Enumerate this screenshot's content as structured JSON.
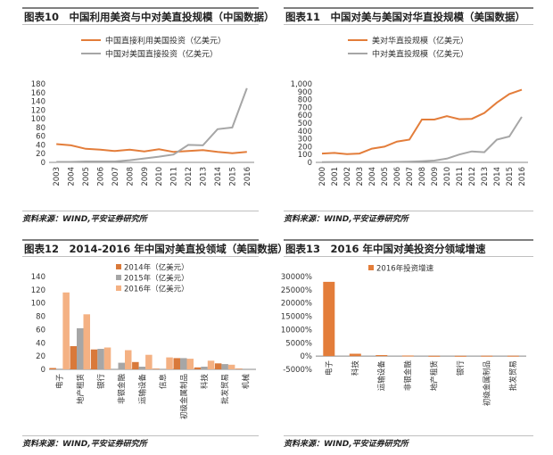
{
  "chart_data": [
    {
      "id": "fig10",
      "type": "line",
      "title": "图表10　中国利用美资与中对美直投规模（中国数据）",
      "categories": [
        "2003",
        "2004",
        "2005",
        "2006",
        "2007",
        "2008",
        "2009",
        "2010",
        "2011",
        "2012",
        "2013",
        "2014",
        "2015",
        "2016"
      ],
      "series": [
        {
          "name": "中国直接利用美国投资（亿美元）",
          "color": "#e37d3a",
          "values": [
            42,
            39,
            31,
            29,
            26,
            29,
            25,
            30,
            24,
            26,
            28,
            24,
            21,
            24
          ]
        },
        {
          "name": "中国对美国直接投资（亿美元）",
          "color": "#a6a6a6",
          "values": [
            1,
            1,
            2,
            2,
            2,
            5,
            9,
            13,
            18,
            40,
            39,
            76,
            80,
            170
          ]
        }
      ],
      "ylim": [
        0,
        180
      ],
      "yticks": [
        0,
        20,
        40,
        60,
        80,
        100,
        120,
        140,
        160,
        180
      ],
      "legend": "top-left",
      "source": "资料来源：WIND,平安证券研究所"
    },
    {
      "id": "fig11",
      "type": "line",
      "title": "图表11　中国对美与美国对华直投规模（美国数据）",
      "categories": [
        "2000",
        "2001",
        "2002",
        "2003",
        "2004",
        "2005",
        "2006",
        "2007",
        "2008",
        "2009",
        "2010",
        "2011",
        "2012",
        "2013",
        "2014",
        "2015",
        "2016"
      ],
      "series": [
        {
          "name": "美对华直投规模（亿美元）",
          "color": "#e37d3a",
          "values": [
            112,
            120,
            105,
            113,
            175,
            200,
            265,
            290,
            545,
            545,
            590,
            550,
            555,
            630,
            760,
            870,
            925
          ]
        },
        {
          "name": "中对美直投规模（亿美元）",
          "color": "#a6a6a6",
          "values": [
            3,
            4,
            4,
            4,
            4,
            5,
            6,
            8,
            14,
            23,
            48,
            100,
            140,
            130,
            290,
            330,
            580
          ]
        }
      ],
      "ylim": [
        0,
        1000
      ],
      "yticks": [
        "0",
        "100",
        "200",
        "300",
        "400",
        "500",
        "600",
        "700",
        "800",
        "900",
        "1,000"
      ],
      "legend": "top-left",
      "source": "资料来源：WIND,平安证券研究所"
    },
    {
      "id": "fig12",
      "type": "bar",
      "title": "图表12　2014-2016 年中国对美直投领域（美国数据）",
      "categories": [
        "电子",
        "地产租赁",
        "银行",
        "非银金融",
        "运输设备",
        "信息",
        "初级金属制品",
        "科技",
        "批发贸易",
        "机械"
      ],
      "series": [
        {
          "name": "2014年（亿美元）",
          "color": "#d9793a",
          "values": [
            2,
            35,
            30,
            0,
            11,
            1,
            17,
            3,
            9,
            1
          ]
        },
        {
          "name": "2015年（亿美元）",
          "color": "#a6a6a6",
          "values": [
            1,
            62,
            31,
            10,
            4,
            0,
            17,
            4,
            8,
            0
          ]
        },
        {
          "name": "2016年（亿美元）",
          "color": "#f4b183",
          "values": [
            116,
            83,
            33,
            29,
            22,
            18,
            16,
            13,
            7,
            0
          ]
        }
      ],
      "ylim": [
        0,
        140
      ],
      "yticks": [
        0,
        20,
        40,
        60,
        80,
        100,
        120,
        140
      ],
      "legend": "top-center",
      "source": "资料来源：WIND,平安证券研究所"
    },
    {
      "id": "fig13",
      "type": "bar",
      "title": "图表13　2016 年中国对美投资分领域增速",
      "categories": [
        "电子",
        "科技",
        "运输设备",
        "非银金融",
        "地产租赁",
        "银行",
        "初级金属制品",
        "批发贸易"
      ],
      "series": [
        {
          "name": "2016年投资增速",
          "color": "#e37d3a",
          "values": [
            28000,
            900,
            400,
            200,
            100,
            100,
            150,
            150
          ]
        }
      ],
      "ylim": [
        -5000,
        30000
      ],
      "yticks": [
        "-5000%",
        "0%",
        "5000%",
        "10000%",
        "15000%",
        "20000%",
        "25000%",
        "30000%"
      ],
      "legend": "top-center",
      "source": "资料来源：WIND,平安证券研究所"
    }
  ]
}
